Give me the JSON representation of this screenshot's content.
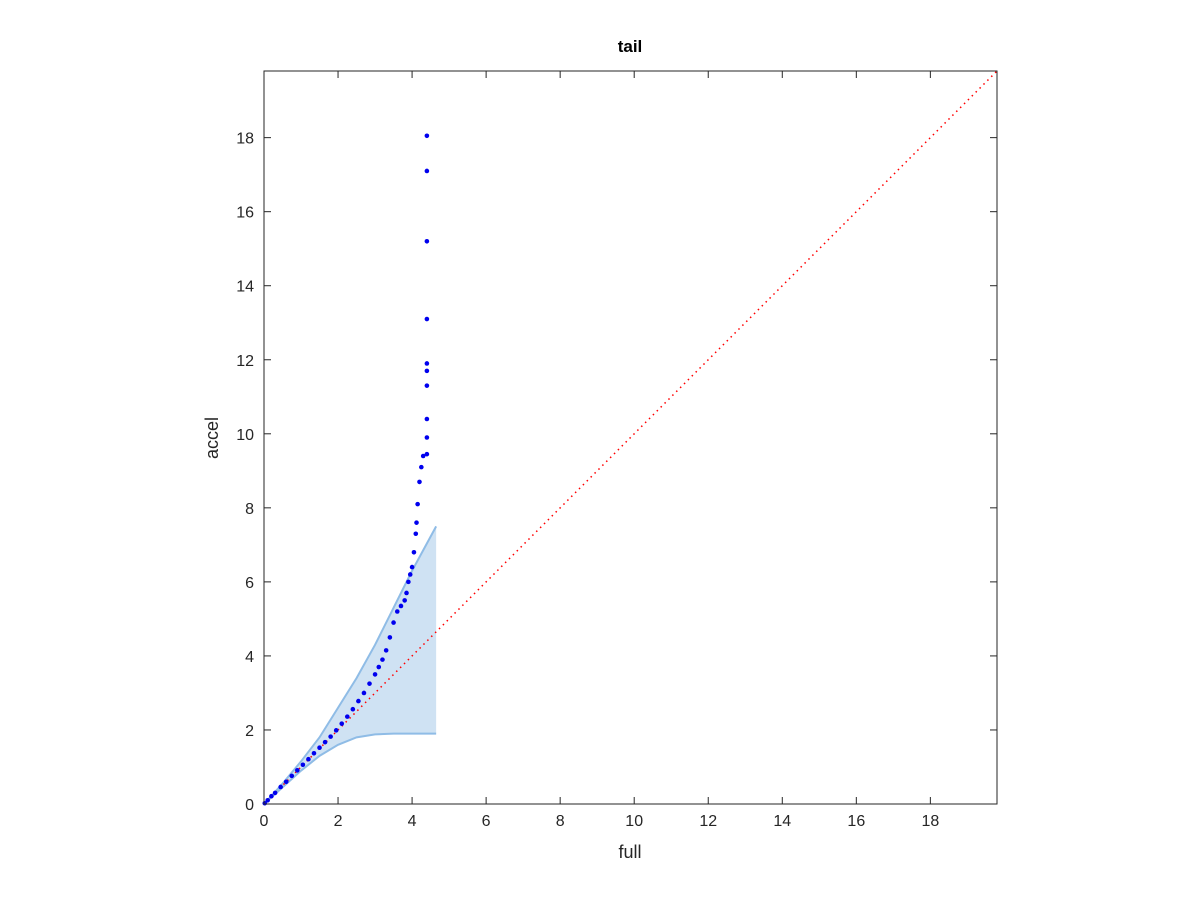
{
  "chart_data": {
    "type": "scatter",
    "title": "tail",
    "xlabel": "full",
    "ylabel": "accel",
    "xlim": [
      0,
      19.8
    ],
    "ylim": [
      0,
      19.8
    ],
    "xticks": [
      0,
      2,
      4,
      6,
      8,
      10,
      12,
      14,
      16,
      18
    ],
    "yticks": [
      0,
      2,
      4,
      6,
      8,
      10,
      12,
      14,
      16,
      18
    ],
    "grid": false,
    "band": {
      "color": "#cfe2f3",
      "edge_color": "#8fbce6",
      "x": [
        0,
        0.5,
        1,
        1.5,
        2,
        2.5,
        3,
        3.5,
        4,
        4.65
      ],
      "upper": [
        0,
        0.55,
        1.15,
        1.8,
        2.6,
        3.4,
        4.3,
        5.3,
        6.3,
        7.5
      ],
      "lower": [
        0,
        0.45,
        0.9,
        1.3,
        1.6,
        1.8,
        1.88,
        1.9,
        1.9,
        1.9
      ]
    },
    "reference_line": {
      "color": "#ff0000",
      "x": [
        0,
        19.8
      ],
      "y": [
        0,
        19.8
      ]
    },
    "points": {
      "color": "#0000ee",
      "x": [
        0.02,
        0.1,
        0.2,
        0.3,
        0.45,
        0.6,
        0.75,
        0.9,
        1.05,
        1.2,
        1.35,
        1.5,
        1.65,
        1.8,
        1.95,
        2.1,
        2.25,
        2.4,
        2.55,
        2.7,
        2.85,
        3.0,
        3.1,
        3.2,
        3.3,
        3.4,
        3.5,
        3.6,
        3.7,
        3.8,
        3.85,
        3.9,
        3.95,
        4.0,
        4.05,
        4.1,
        4.12,
        4.15,
        4.2,
        4.25,
        4.3,
        4.4,
        4.4,
        4.4,
        4.4,
        4.4,
        4.4,
        4.4,
        4.4,
        4.4,
        4.4
      ],
      "y": [
        0.02,
        0.1,
        0.21,
        0.3,
        0.46,
        0.6,
        0.76,
        0.91,
        1.06,
        1.21,
        1.37,
        1.52,
        1.67,
        1.82,
        1.99,
        2.17,
        2.36,
        2.56,
        2.78,
        3.0,
        3.25,
        3.5,
        3.7,
        3.9,
        4.15,
        4.5,
        4.9,
        5.2,
        5.35,
        5.5,
        5.7,
        6.0,
        6.2,
        6.4,
        6.8,
        7.3,
        7.6,
        8.1,
        8.7,
        9.1,
        9.4,
        9.45,
        9.9,
        10.4,
        11.3,
        11.7,
        11.9,
        13.1,
        15.2,
        17.1,
        18.05
      ]
    }
  }
}
